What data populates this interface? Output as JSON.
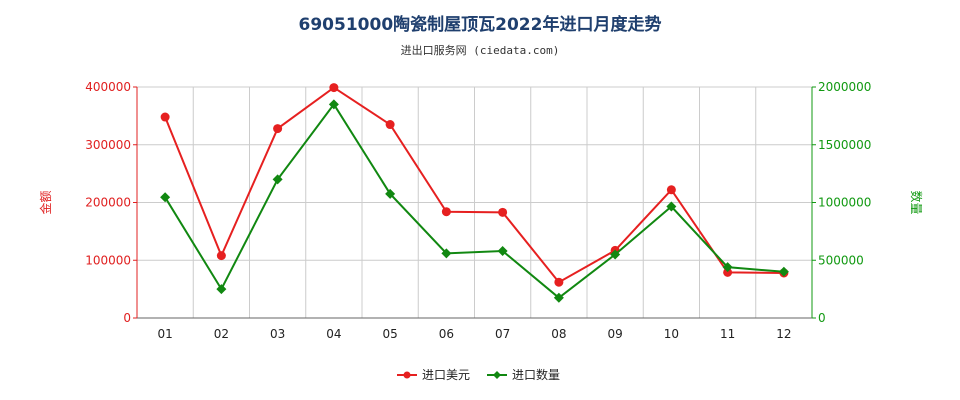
{
  "header": {
    "title": "69051000陶瓷制屋顶瓦2022年进口月度走势",
    "subtitle": "进出口服务网 (ciedata.com)"
  },
  "chart_data": {
    "type": "line",
    "categories": [
      "01",
      "02",
      "03",
      "04",
      "05",
      "06",
      "07",
      "08",
      "09",
      "10",
      "11",
      "12"
    ],
    "series": [
      {
        "name": "进口美元",
        "axis": "left",
        "color": "#e62020",
        "marker": "circle",
        "values": [
          348000,
          108000,
          328000,
          399000,
          335000,
          184000,
          183000,
          62000,
          117000,
          222000,
          79000,
          78000
        ]
      },
      {
        "name": "进口数量",
        "axis": "right",
        "color": "#118811",
        "marker": "diamond",
        "values": [
          1045000,
          250000,
          1200000,
          1850000,
          1075000,
          560000,
          580000,
          175000,
          550000,
          965000,
          440000,
          400000
        ]
      }
    ],
    "y_left": {
      "label": "金额",
      "min": 0,
      "max": 400000,
      "ticks": [
        "0",
        "100000",
        "200000",
        "300000",
        "400000"
      ]
    },
    "y_right": {
      "label": "数量",
      "min": 0,
      "max": 2000000,
      "ticks": [
        "0",
        "500000",
        "1000000",
        "1500000",
        "2000000"
      ]
    },
    "grid": true,
    "legend_position": "bottom-center"
  }
}
